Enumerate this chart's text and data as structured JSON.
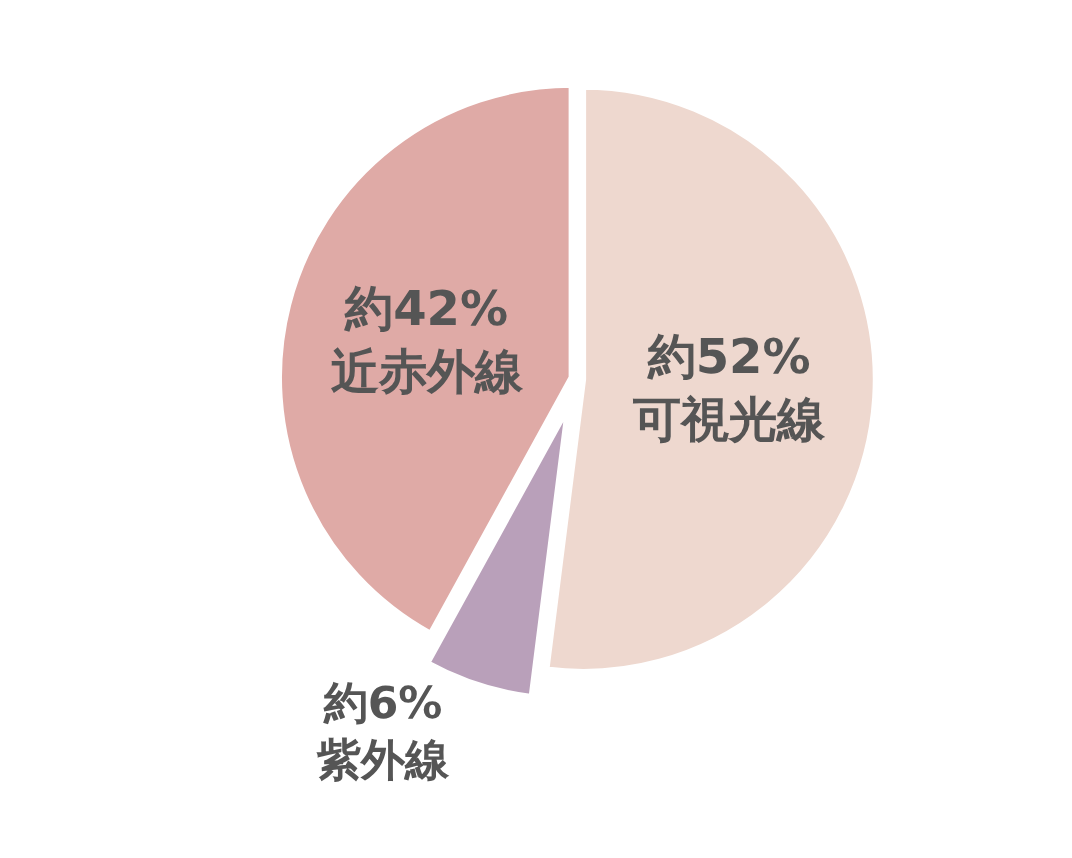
{
  "chart_data": {
    "type": "pie",
    "categories": [
      "可視光線",
      "紫外線",
      "近赤外線"
    ],
    "values": [
      52,
      6,
      42
    ],
    "colors": [
      "#eed8cf",
      "#b9a0ba",
      "#dfaaa6"
    ],
    "value_labels": [
      "約52%",
      "約6%",
      "約42%"
    ],
    "legend": false
  }
}
